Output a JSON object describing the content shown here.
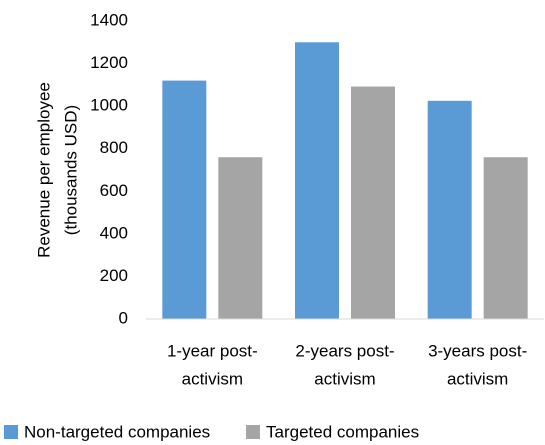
{
  "chart_data": {
    "type": "bar",
    "ylabel": [
      "Revenue per employee",
      "(thousands USD)"
    ],
    "categories": [
      [
        "1-year post-",
        "activism"
      ],
      [
        "2-years post-",
        "activism"
      ],
      [
        "3-years post-",
        "activism"
      ]
    ],
    "series": [
      {
        "name": "Non-targeted companies",
        "color": "#5b9bd5",
        "values": [
          1120,
          1300,
          1025
        ]
      },
      {
        "name": "Targeted companies",
        "color": "#a5a5a5",
        "values": [
          760,
          1092,
          760
        ]
      }
    ],
    "ylim": [
      0,
      1400
    ],
    "yticks": [
      0,
      200,
      400,
      600,
      800,
      1000,
      1200,
      1400
    ],
    "grid": false,
    "legend": "bottom"
  }
}
